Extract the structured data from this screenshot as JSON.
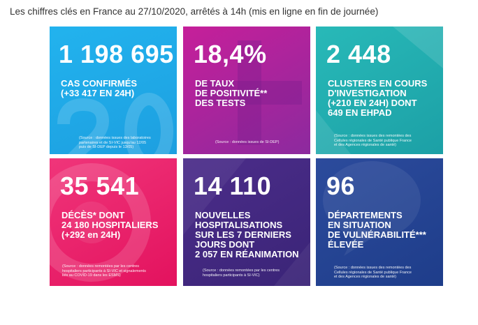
{
  "header": {
    "title": "Les chiffres clés en France au 27/10/2020, arrêtés à 14h (mis en ligne en fin de journée)"
  },
  "tiles": [
    {
      "value": "1 198 695",
      "lines": [
        "CAS CONFIRMÉS",
        "(+33 417 EN 24H)"
      ],
      "source": [
        "(Source : données issues des laboratoires",
        "partenaires et de SI-VIC jusqu'au 12/05",
        "puis de SI-DEP depuis le 13/05)"
      ],
      "color": "#1fa9e8",
      "icon": "number-20-watermark"
    },
    {
      "value": "18,4%",
      "lines": [
        "DE TAUX",
        "DE POSITIVITÉ**",
        "DES TESTS"
      ],
      "source": [
        "(Source : données issues de SI-DEP)"
      ],
      "color": "#a9268f",
      "icon": "plus-watermark"
    },
    {
      "value": "2 448",
      "lines": [
        "CLUSTERS EN COURS",
        "D'INVESTIGATION",
        "(+210 EN 24H) DONT",
        "649 EN EHPAD"
      ],
      "source": [
        "(Source : données issues des remontées des",
        "Cellules régionales de Santé publique France",
        "et des Agences régionales de santé)"
      ],
      "color": "#22aeae",
      "icon": "arrow-watermark"
    },
    {
      "value": "35 541",
      "lines": [
        "DÉCÈS* DONT",
        "24 180 HOSPITALIERS",
        "(+292 en 24H)"
      ],
      "source": [
        "(Source : données remontées par les centres",
        "hospitaliers participants à SI-VIC et signalements",
        "liés au COVID-19 dans les ESMS)"
      ],
      "color": "#ea2470",
      "icon": "circle-watermark"
    },
    {
      "value": "14 110",
      "lines": [
        "NOUVELLES",
        "HOSPITALISATIONS",
        "SUR LES 7 DERNIERS",
        "JOURS DONT",
        "2 057 EN RÉANIMATION"
      ],
      "source": [
        "(Source : données remontées par les centres",
        "hospitaliers participants à SI-VIC)"
      ],
      "color": "#432980",
      "icon": "triangle-watermark"
    },
    {
      "value": "96",
      "lines": [
        "DÉPARTEMENTS",
        "EN SITUATION",
        "DE VULNÉRABILITÉ***",
        "ÉLEVÉE"
      ],
      "source": [
        "(Source : données issues des remontées des",
        "Cellules régionales de Santé publique France",
        "et des Agences régionales de santé)"
      ],
      "color": "#244493",
      "icon": "speech-bubble-watermark"
    }
  ]
}
